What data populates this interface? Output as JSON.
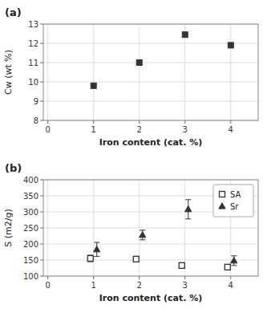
{
  "chart_data": [
    {
      "type": "scatter",
      "title": "(a)",
      "xlabel": "Iron content (cat. %)",
      "ylabel": "Cw (wt %)",
      "x": [
        1,
        2,
        3,
        4
      ],
      "values": [
        9.8,
        11.0,
        12.45,
        11.9
      ],
      "color": "#333333",
      "marker": "square",
      "xlim": [
        -0.1,
        4.6
      ],
      "xticks": [
        0,
        1,
        2,
        3,
        4
      ],
      "ylim": [
        8,
        13
      ],
      "yticks": [
        8,
        9,
        10,
        11,
        12,
        13
      ],
      "grid": true
    },
    {
      "type": "scatter",
      "title": "(b)",
      "xlabel": "Iron content (cat. %)",
      "ylabel": "S (m2/g)",
      "x": [
        1,
        2,
        3,
        4
      ],
      "series": [
        {
          "name": "SA",
          "color": "#333333",
          "marker": "open-square",
          "values": [
            155,
            153,
            133,
            128
          ],
          "errors": [
            10,
            8,
            8,
            8
          ]
        },
        {
          "name": "Sr",
          "color": "#333333",
          "marker": "triangle",
          "values": [
            183,
            228,
            308,
            148
          ],
          "errors": [
            22,
            15,
            30,
            15
          ]
        }
      ],
      "xlim": [
        -0.1,
        4.6
      ],
      "xticks": [
        0,
        1,
        2,
        3,
        4
      ],
      "ylim": [
        100,
        400
      ],
      "yticks": [
        100,
        150,
        200,
        250,
        300,
        350,
        400
      ],
      "grid": true,
      "legend": "upper right"
    }
  ]
}
